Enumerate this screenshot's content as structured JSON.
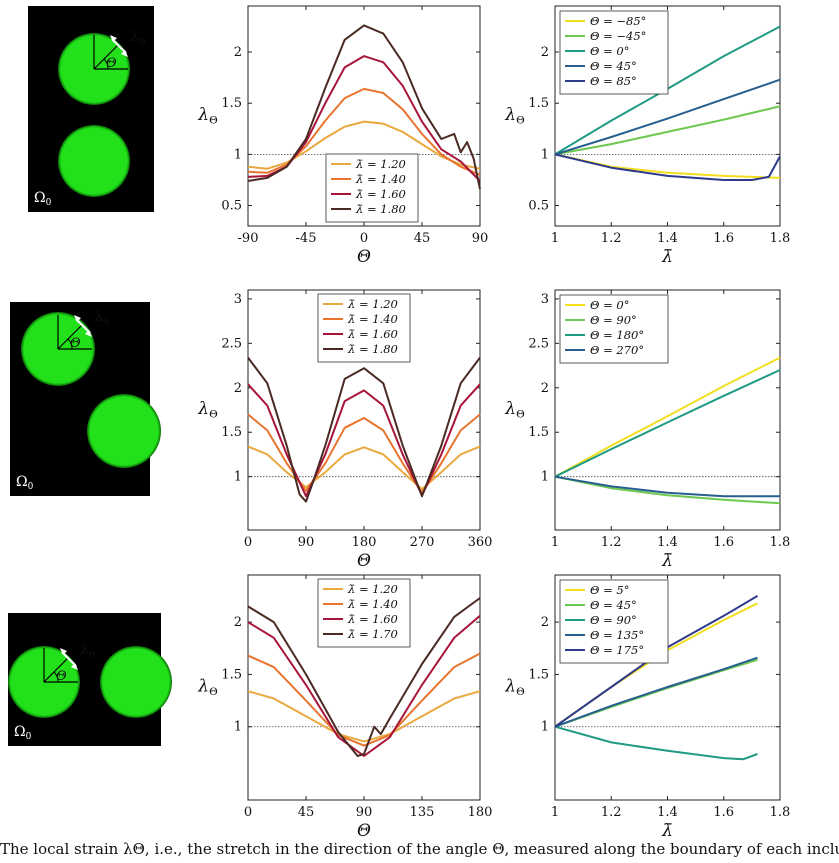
{
  "omega_label": "Ω",
  "omega_sub": "0",
  "lambda_theta_label": "λ",
  "theta_sub": "Θ",
  "theta_symbol": "Θ",
  "caption": "The local strain λΘ, i.e., the stretch in the direction of the angle Θ, measured along the boundary of each inclusion, is plotted for",
  "legend_lambda_prefix": "λ̄ = ",
  "legend_theta_prefix": "Θ = ",
  "colors": {
    "lambda_120": "#e9a93f",
    "lambda_140": "#e8742e",
    "lambda_160": "#a8153a",
    "lambda_180": "#4a2a22",
    "theta_1": "#f2dd1e",
    "theta_2": "#6cc84e",
    "theta_3": "#1f9a83",
    "theta_4": "#275f8f",
    "theta_5": "#2e3a8c",
    "inclusion": "#22e01a",
    "matrix": "#000000",
    "reference_line": "#444444"
  },
  "chart_data": [
    {
      "id": "row1-left",
      "type": "line",
      "xlabel": "Θ",
      "ylabel": "λΘ",
      "xlim": [
        -90,
        90
      ],
      "ylim": [
        0.3,
        2.45
      ],
      "xticks": [
        -90,
        -45,
        0,
        45,
        90
      ],
      "yticks": [
        0.5,
        1,
        1.5,
        2
      ],
      "ytick_labels": [
        "0.5",
        "1",
        "1.5",
        "2"
      ],
      "reference_y": 1,
      "legend_position": "bottom-center",
      "series": [
        {
          "name": "1.20",
          "color_key": "lambda_120",
          "x": [
            -90,
            -75,
            -60,
            -45,
            -30,
            -15,
            0,
            15,
            30,
            45,
            60,
            75,
            90
          ],
          "y": [
            0.88,
            0.86,
            0.92,
            1.03,
            1.16,
            1.27,
            1.32,
            1.3,
            1.22,
            1.1,
            0.98,
            0.9,
            0.86
          ]
        },
        {
          "name": "1.40",
          "color_key": "lambda_140",
          "x": [
            -90,
            -75,
            -60,
            -45,
            -30,
            -15,
            0,
            15,
            30,
            45,
            60,
            75,
            90
          ],
          "y": [
            0.83,
            0.82,
            0.9,
            1.08,
            1.33,
            1.55,
            1.64,
            1.6,
            1.44,
            1.2,
            1.0,
            0.88,
            0.8
          ]
        },
        {
          "name": "1.60",
          "color_key": "lambda_160",
          "x": [
            -90,
            -75,
            -60,
            -45,
            -30,
            -15,
            0,
            15,
            30,
            45,
            60,
            75,
            90
          ],
          "y": [
            0.78,
            0.79,
            0.88,
            1.12,
            1.5,
            1.85,
            1.96,
            1.9,
            1.67,
            1.32,
            1.05,
            0.93,
            0.74
          ]
        },
        {
          "name": "1.80",
          "color_key": "lambda_180",
          "x": [
            -90,
            -75,
            -60,
            -45,
            -30,
            -15,
            0,
            15,
            30,
            45,
            60,
            70,
            75,
            80,
            85,
            90
          ],
          "y": [
            0.74,
            0.77,
            0.88,
            1.15,
            1.65,
            2.12,
            2.26,
            2.18,
            1.9,
            1.45,
            1.15,
            1.2,
            1.02,
            1.12,
            0.96,
            0.66
          ]
        }
      ]
    },
    {
      "id": "row1-right",
      "type": "line",
      "xlabel": "λ̄",
      "ylabel": "λΘ",
      "xlim": [
        1,
        1.8
      ],
      "ylim": [
        0.3,
        2.45
      ],
      "xticks": [
        1,
        1.2,
        1.4,
        1.6,
        1.8
      ],
      "xtick_labels": [
        "1",
        "1.2",
        "1.4",
        "1.6",
        "1.8"
      ],
      "yticks": [
        0.5,
        1,
        1.5,
        2
      ],
      "ytick_labels": [
        "0.5",
        "1",
        "1.5",
        "2"
      ],
      "reference_y": 1,
      "legend_position": "top-left",
      "series": [
        {
          "name": "−85°",
          "color_key": "theta_1",
          "x": [
            1,
            1.2,
            1.4,
            1.6,
            1.8
          ],
          "y": [
            1,
            0.88,
            0.82,
            0.79,
            0.77
          ]
        },
        {
          "name": "−45°",
          "color_key": "theta_2",
          "x": [
            1,
            1.2,
            1.4,
            1.6,
            1.8
          ],
          "y": [
            1,
            1.1,
            1.22,
            1.34,
            1.47
          ]
        },
        {
          "name": "0°",
          "color_key": "theta_3",
          "x": [
            1,
            1.2,
            1.4,
            1.6,
            1.8
          ],
          "y": [
            1,
            1.33,
            1.64,
            1.96,
            2.25
          ]
        },
        {
          "name": "45°",
          "color_key": "theta_4",
          "x": [
            1,
            1.2,
            1.4,
            1.6,
            1.8
          ],
          "y": [
            1,
            1.17,
            1.35,
            1.54,
            1.73
          ]
        },
        {
          "name": "85°",
          "color_key": "theta_5",
          "x": [
            1,
            1.2,
            1.4,
            1.6,
            1.7,
            1.76,
            1.8
          ],
          "y": [
            1,
            0.87,
            0.79,
            0.75,
            0.75,
            0.78,
            0.98
          ]
        }
      ]
    },
    {
      "id": "row2-left",
      "type": "line",
      "xlabel": "Θ",
      "ylabel": "λΘ",
      "xlim": [
        0,
        360
      ],
      "ylim": [
        0.4,
        3.1
      ],
      "xticks": [
        0,
        90,
        180,
        270,
        360
      ],
      "yticks": [
        1,
        1.5,
        2,
        2.5,
        3
      ],
      "ytick_labels": [
        "1",
        "1.5",
        "2",
        "2.5",
        "3"
      ],
      "reference_y": 1,
      "legend_position": "top-center",
      "series": [
        {
          "name": "1.20",
          "color_key": "lambda_120",
          "x": [
            0,
            30,
            60,
            90,
            120,
            150,
            180,
            210,
            240,
            270,
            300,
            330,
            360
          ],
          "y": [
            1.34,
            1.25,
            1.05,
            0.88,
            1.05,
            1.25,
            1.33,
            1.25,
            1.05,
            0.86,
            1.05,
            1.25,
            1.34
          ]
        },
        {
          "name": "1.40",
          "color_key": "lambda_140",
          "x": [
            0,
            30,
            60,
            90,
            120,
            150,
            180,
            210,
            240,
            270,
            300,
            330,
            360
          ],
          "y": [
            1.7,
            1.52,
            1.15,
            0.84,
            1.15,
            1.55,
            1.66,
            1.52,
            1.15,
            0.82,
            1.15,
            1.52,
            1.7
          ]
        },
        {
          "name": "1.60",
          "color_key": "lambda_160",
          "x": [
            0,
            30,
            60,
            90,
            120,
            150,
            180,
            210,
            240,
            270,
            300,
            330,
            360
          ],
          "y": [
            2.04,
            1.8,
            1.25,
            0.78,
            1.25,
            1.85,
            1.97,
            1.8,
            1.25,
            0.79,
            1.25,
            1.8,
            2.04
          ]
        },
        {
          "name": "1.80",
          "color_key": "lambda_180",
          "x": [
            0,
            30,
            60,
            80,
            90,
            100,
            120,
            150,
            180,
            210,
            240,
            270,
            300,
            330,
            360
          ],
          "y": [
            2.34,
            2.05,
            1.35,
            0.8,
            0.72,
            0.92,
            1.35,
            2.1,
            2.22,
            2.05,
            1.35,
            0.78,
            1.35,
            2.05,
            2.34
          ]
        }
      ]
    },
    {
      "id": "row2-right",
      "type": "line",
      "xlabel": "λ̄",
      "ylabel": "λΘ",
      "xlim": [
        1,
        1.8
      ],
      "ylim": [
        0.4,
        3.1
      ],
      "xticks": [
        1,
        1.2,
        1.4,
        1.6,
        1.8
      ],
      "xtick_labels": [
        "1",
        "1.2",
        "1.4",
        "1.6",
        "1.8"
      ],
      "yticks": [
        1,
        1.5,
        2,
        2.5,
        3
      ],
      "ytick_labels": [
        "1",
        "1.5",
        "2",
        "2.5",
        "3"
      ],
      "reference_y": 1,
      "legend_position": "top-left",
      "series": [
        {
          "name": "0°",
          "color_key": "theta_1",
          "x": [
            1,
            1.2,
            1.4,
            1.6,
            1.8
          ],
          "y": [
            1,
            1.35,
            1.68,
            2.02,
            2.34
          ]
        },
        {
          "name": "90°",
          "color_key": "theta_2",
          "x": [
            1,
            1.2,
            1.4,
            1.6,
            1.8
          ],
          "y": [
            1,
            0.87,
            0.79,
            0.74,
            0.7
          ]
        },
        {
          "name": "180°",
          "color_key": "theta_3",
          "x": [
            1,
            1.2,
            1.4,
            1.6,
            1.8
          ],
          "y": [
            1,
            1.31,
            1.61,
            1.91,
            2.2
          ]
        },
        {
          "name": "270°",
          "color_key": "theta_4",
          "x": [
            1,
            1.2,
            1.4,
            1.6,
            1.8
          ],
          "y": [
            1,
            0.89,
            0.82,
            0.78,
            0.78
          ]
        }
      ]
    },
    {
      "id": "row3-left",
      "type": "line",
      "xlabel": "Θ",
      "ylabel": "λΘ",
      "xlim": [
        0,
        180
      ],
      "ylim": [
        0.3,
        2.45
      ],
      "xticks": [
        0,
        45,
        90,
        135,
        180
      ],
      "yticks": [
        1,
        1.5,
        2
      ],
      "ytick_labels": [
        "1",
        "1.5",
        "2"
      ],
      "reference_y": 1,
      "legend_position": "top-center",
      "series": [
        {
          "name": "1.20",
          "color_key": "lambda_120",
          "x": [
            0,
            20,
            45,
            70,
            90,
            110,
            135,
            160,
            180
          ],
          "y": [
            1.34,
            1.27,
            1.1,
            0.93,
            0.86,
            0.93,
            1.1,
            1.27,
            1.34
          ]
        },
        {
          "name": "1.40",
          "color_key": "lambda_140",
          "x": [
            0,
            20,
            45,
            70,
            90,
            110,
            135,
            160,
            180
          ],
          "y": [
            1.68,
            1.57,
            1.25,
            0.92,
            0.82,
            0.92,
            1.25,
            1.57,
            1.7
          ]
        },
        {
          "name": "1.60",
          "color_key": "lambda_160",
          "x": [
            0,
            20,
            45,
            70,
            90,
            110,
            135,
            160,
            180
          ],
          "y": [
            2.0,
            1.85,
            1.4,
            0.9,
            0.72,
            0.9,
            1.4,
            1.85,
            2.06
          ]
        },
        {
          "name": "1.70",
          "color_key": "lambda_180",
          "x": [
            0,
            20,
            45,
            70,
            85,
            90,
            98,
            103,
            110,
            135,
            160,
            180
          ],
          "y": [
            2.15,
            2.0,
            1.5,
            0.95,
            0.72,
            0.74,
            1.0,
            0.93,
            1.08,
            1.6,
            2.05,
            2.23
          ]
        }
      ]
    },
    {
      "id": "row3-right",
      "type": "line",
      "xlabel": "λ̄",
      "ylabel": "λΘ",
      "xlim": [
        1,
        1.8
      ],
      "ylim": [
        0.3,
        2.45
      ],
      "xticks": [
        1,
        1.2,
        1.4,
        1.6,
        1.8
      ],
      "xtick_labels": [
        "1",
        "1.2",
        "1.4",
        "1.6",
        "1.8"
      ],
      "yticks": [
        1,
        1.5,
        2
      ],
      "ytick_labels": [
        "1",
        "1.5",
        "2"
      ],
      "reference_y": 1,
      "legend_position": "top-left",
      "series": [
        {
          "name": "5°",
          "color_key": "theta_1",
          "x": [
            1,
            1.2,
            1.4,
            1.6,
            1.72
          ],
          "y": [
            1,
            1.38,
            1.73,
            2.02,
            2.18
          ]
        },
        {
          "name": "45°",
          "color_key": "theta_2",
          "x": [
            1,
            1.2,
            1.4,
            1.6,
            1.72
          ],
          "y": [
            1,
            1.19,
            1.37,
            1.54,
            1.64
          ]
        },
        {
          "name": "90°",
          "color_key": "theta_3",
          "x": [
            1,
            1.2,
            1.4,
            1.6,
            1.67,
            1.72
          ],
          "y": [
            1,
            0.85,
            0.77,
            0.7,
            0.69,
            0.74
          ]
        },
        {
          "name": "135°",
          "color_key": "theta_4",
          "x": [
            1,
            1.2,
            1.4,
            1.6,
            1.72
          ],
          "y": [
            1,
            1.2,
            1.38,
            1.55,
            1.66
          ]
        },
        {
          "name": "175°",
          "color_key": "theta_5",
          "x": [
            1,
            1.2,
            1.4,
            1.6,
            1.72
          ],
          "y": [
            1,
            1.38,
            1.76,
            2.06,
            2.25
          ]
        }
      ]
    }
  ],
  "insets": [
    {
      "id": "inset-row1",
      "circles": 2
    },
    {
      "id": "inset-row2",
      "circles": 2
    },
    {
      "id": "inset-row3",
      "circles": 2
    }
  ]
}
